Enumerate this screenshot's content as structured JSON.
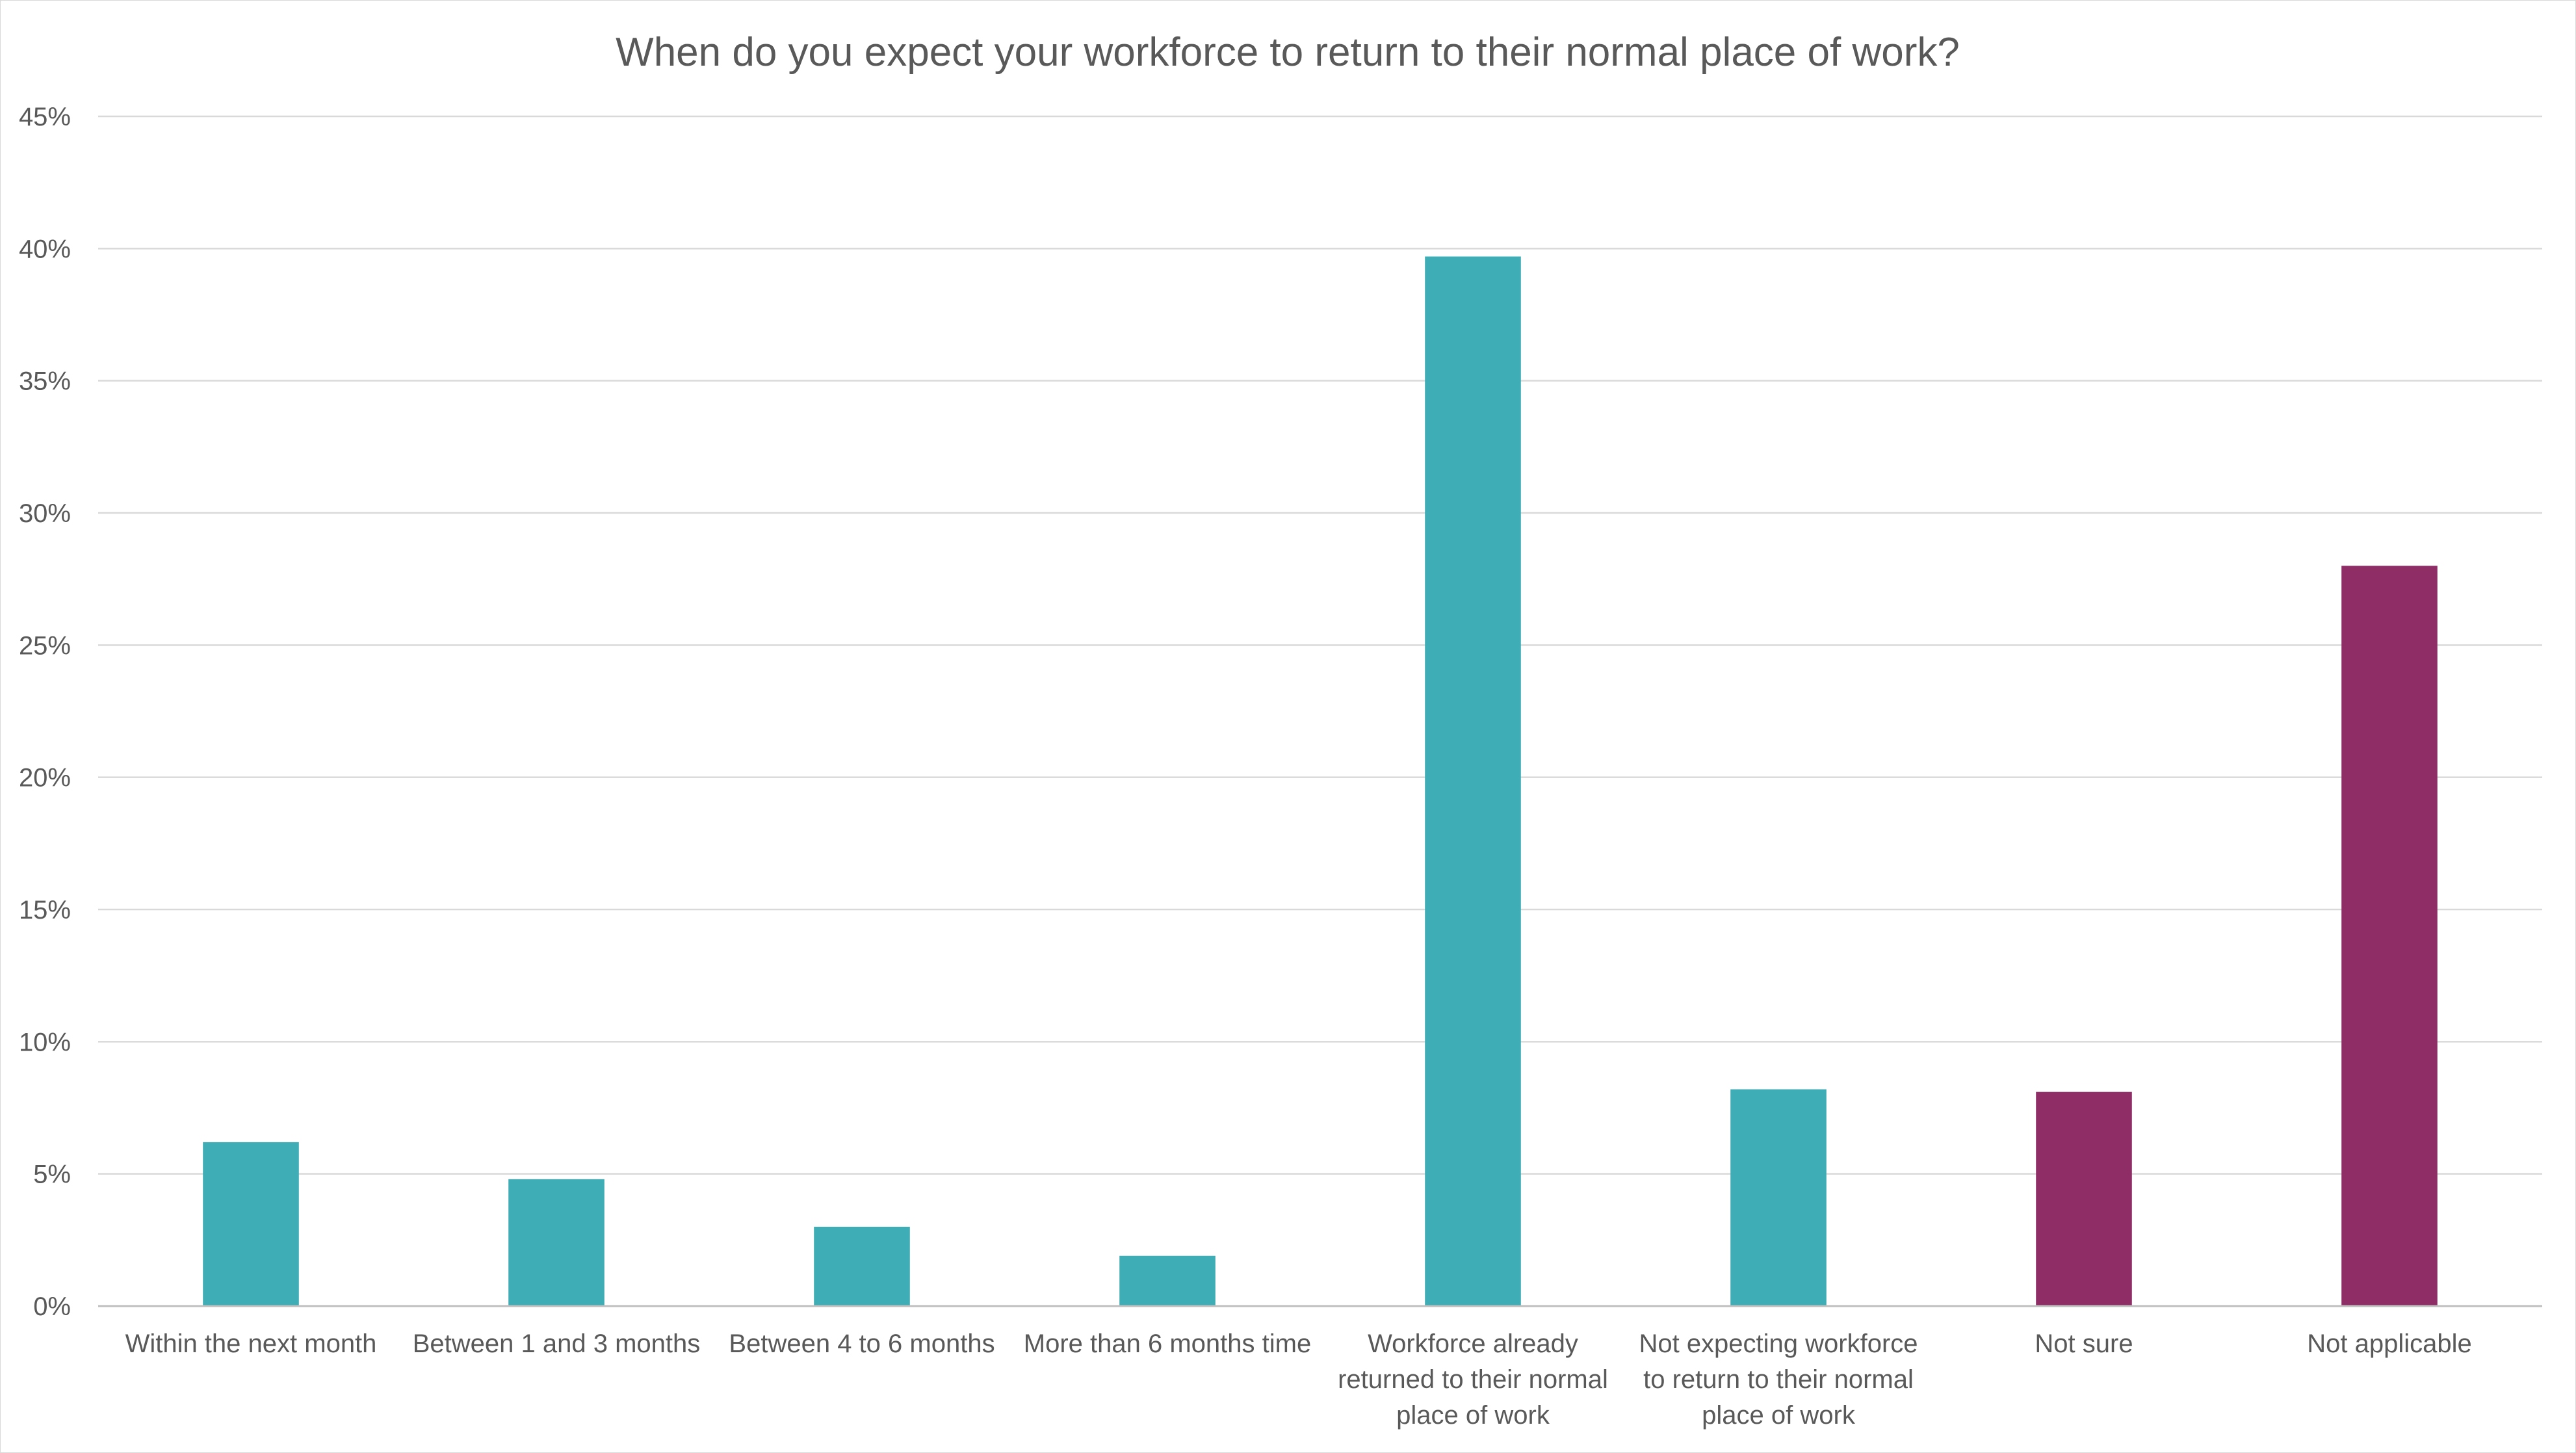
{
  "chart_data": {
    "type": "bar",
    "title": "When do you expect your workforce to return to their normal place of work?",
    "xlabel": "",
    "ylabel": "",
    "ylim": [
      0,
      45
    ],
    "yticks": [
      0,
      5,
      10,
      15,
      20,
      25,
      30,
      35,
      40,
      45
    ],
    "ytick_labels": [
      "0%",
      "5%",
      "10%",
      "15%",
      "20%",
      "25%",
      "30%",
      "35%",
      "40%",
      "45%"
    ],
    "grid": true,
    "legend": "none",
    "categories": [
      [
        "Within the next month"
      ],
      [
        "Between 1 and 3 months"
      ],
      [
        "Between 4 to 6 months"
      ],
      [
        "More than 6 months time"
      ],
      [
        "Workforce already",
        "returned to their normal",
        "place of work"
      ],
      [
        "Not expecting workforce",
        "to return to their normal",
        "place of work"
      ],
      [
        "Not sure"
      ],
      [
        "Not applicable"
      ]
    ],
    "values": [
      6.2,
      4.8,
      3.0,
      1.9,
      39.7,
      8.2,
      8.1,
      28.0
    ],
    "colors": [
      "#3eadb5",
      "#3eadb5",
      "#3eadb5",
      "#3eadb5",
      "#3eadb5",
      "#3eadb5",
      "#8e2d66",
      "#8e2d66"
    ]
  }
}
